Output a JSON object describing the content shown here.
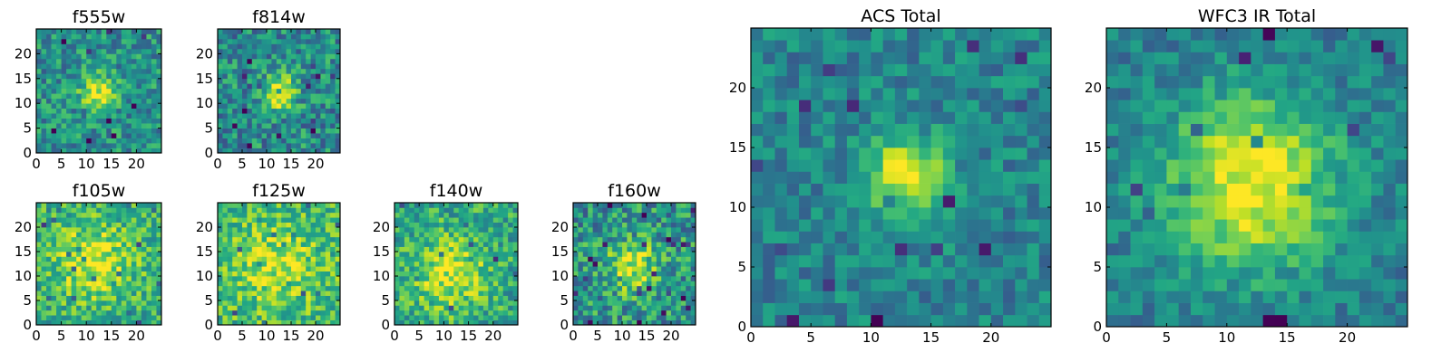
{
  "chart_data": [
    {
      "type": "heatmap",
      "title": "f555w",
      "grid_size": 25,
      "xlim": [
        0,
        25
      ],
      "ylim": [
        0,
        25
      ],
      "xticks": [
        0,
        5,
        10,
        15,
        20
      ],
      "yticks": [
        0,
        5,
        10,
        15,
        20
      ],
      "center": [
        12.5,
        12.2
      ],
      "peak_radius": 2.6,
      "background": 0.5,
      "peak": 0.95,
      "noise": 0.22,
      "seed": 11,
      "colormap": "viridis",
      "grid": false
    },
    {
      "type": "heatmap",
      "title": "f814w",
      "grid_size": 25,
      "xlim": [
        0,
        25
      ],
      "ylim": [
        0,
        25
      ],
      "xticks": [
        0,
        5,
        10,
        15,
        20
      ],
      "yticks": [
        0,
        5,
        10,
        15,
        20
      ],
      "center": [
        12.5,
        12.2
      ],
      "peak_radius": 2.6,
      "background": 0.48,
      "peak": 0.95,
      "noise": 0.24,
      "seed": 23,
      "colormap": "viridis",
      "grid": false
    },
    {
      "type": "heatmap",
      "title": "f105w",
      "grid_size": 25,
      "xlim": [
        0,
        25
      ],
      "ylim": [
        0,
        25
      ],
      "xticks": [
        0,
        5,
        10,
        15,
        20
      ],
      "yticks": [
        0,
        5,
        10,
        15,
        20
      ],
      "center": [
        11.5,
        13.0
      ],
      "peak_radius": 5.5,
      "background": 0.62,
      "peak": 0.95,
      "noise": 0.22,
      "seed": 37,
      "colormap": "viridis",
      "grid": false
    },
    {
      "type": "heatmap",
      "title": "f125w",
      "grid_size": 25,
      "xlim": [
        0,
        25
      ],
      "ylim": [
        0,
        25
      ],
      "xticks": [
        0,
        5,
        10,
        15,
        20
      ],
      "yticks": [
        0,
        5,
        10,
        15,
        20
      ],
      "center": [
        12.0,
        12.0
      ],
      "peak_radius": 6.0,
      "background": 0.66,
      "peak": 0.9,
      "noise": 0.22,
      "seed": 41,
      "colormap": "viridis",
      "grid": false
    },
    {
      "type": "heatmap",
      "title": "f140w",
      "grid_size": 25,
      "xlim": [
        0,
        25
      ],
      "ylim": [
        0,
        25
      ],
      "xticks": [
        0,
        5,
        10,
        15,
        20
      ],
      "yticks": [
        0,
        5,
        10,
        15,
        20
      ],
      "center": [
        11.5,
        10.5
      ],
      "peak_radius": 5.0,
      "background": 0.6,
      "peak": 0.95,
      "noise": 0.22,
      "seed": 53,
      "colormap": "viridis",
      "grid": false
    },
    {
      "type": "heatmap",
      "title": "f160w",
      "grid_size": 25,
      "xlim": [
        0,
        25
      ],
      "ylim": [
        0,
        25
      ],
      "xticks": [
        0,
        5,
        10,
        15,
        20
      ],
      "yticks": [
        0,
        5,
        10,
        15,
        20
      ],
      "center": [
        12.0,
        12.0
      ],
      "peak_radius": 3.5,
      "background": 0.52,
      "peak": 0.95,
      "noise": 0.26,
      "seed": 67,
      "colormap": "viridis",
      "grid": false
    },
    {
      "type": "heatmap",
      "title": "ACS Total",
      "grid_size": 25,
      "xlim": [
        0,
        25
      ],
      "ylim": [
        0,
        25
      ],
      "xticks": [
        0,
        5,
        10,
        15,
        20
      ],
      "yticks": [
        0,
        5,
        10,
        15,
        20
      ],
      "center": [
        12.8,
        12.8
      ],
      "peak_radius": 2.3,
      "background": 0.45,
      "peak": 1.0,
      "noise": 0.16,
      "seed": 79,
      "colormap": "viridis",
      "grid": false
    },
    {
      "type": "heatmap",
      "title": "WFC3 IR Total",
      "grid_size": 25,
      "xlim": [
        0,
        25
      ],
      "ylim": [
        0,
        25
      ],
      "xticks": [
        0,
        5,
        10,
        15,
        20
      ],
      "yticks": [
        0,
        5,
        10,
        15,
        20
      ],
      "center": [
        12.0,
        12.0
      ],
      "peak_radius": 5.0,
      "background": 0.42,
      "peak": 1.0,
      "noise": 0.14,
      "seed": 97,
      "colormap": "viridis",
      "grid": false
    }
  ]
}
